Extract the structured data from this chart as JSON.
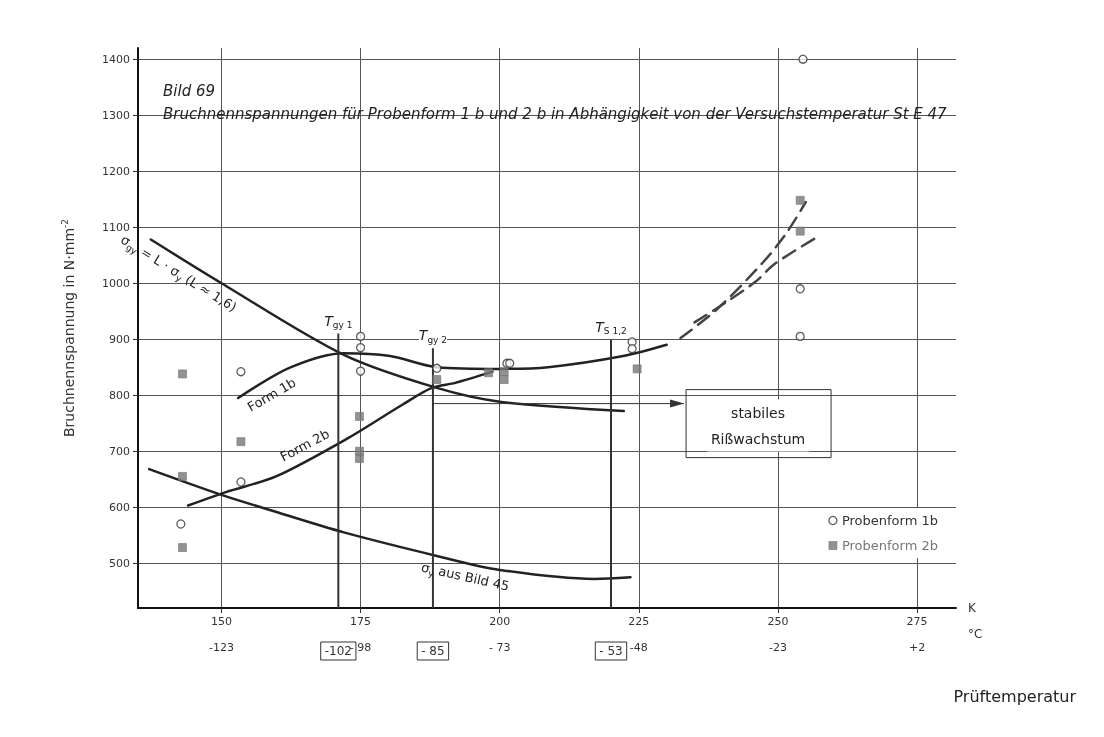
{
  "chart_data": {
    "type": "line",
    "title": "Bild 69",
    "subtitle": "Bruchnennspannungen für Probenform 1 b und 2 b in Abhängigkeit von der Versuchstemperatur St E 47",
    "ylabel": "Bruchnennspannung in N·mm$^{-2}$",
    "xlabel": "K",
    "x2label": "°C",
    "annotations": [
      "stabiles Rißwachstum",
      "Prüftemperatur"
    ],
    "xlim": [
      135,
      282
    ],
    "xticks": [
      150,
      175,
      200,
      225,
      250,
      275
    ],
    "x2lim": [
      -138,
      9
    ],
    "x2ticks": [
      -123,
      {
        "value": -102,
        "label": "-102"
      },
      {
        "value": -98,
        "label": "- 98"
      },
      {
        "value": -85,
        "label": "- 85"
      },
      {
        "value": -73,
        "label": "- 73"
      },
      {
        "value": -53,
        "label": "- 53"
      },
      {
        "value": -48,
        "label": "-48"
      },
      {
        "value": -23,
        "label": "-23"
      },
      {
        "value": 2,
        "label": "+2"
      }
    ],
    "ylim": [
      420,
      1420
    ],
    "yticks": [
      500,
      600,
      700,
      800,
      900,
      1000,
      1100,
      1200,
      1300,
      1400
    ],
    "grid": true,
    "legend": "bottom right",
    "ref_lines": [
      {
        "axis": "x",
        "value": 171,
        "label": "T$_{gy 1}$",
        "color": "#333333"
      },
      {
        "axis": "x",
        "value": 188,
        "label": "T$_{gy 2}$",
        "color": "#333333"
      },
      {
        "axis": "x",
        "value": 220,
        "label": "T$_{S 1,2}$",
        "color": "#333333"
      }
    ],
    "series": [
      {
        "name": "σ$_{gy}$ = L · σ$_{y}$ (L ≈ 1,6)",
        "marker": "none",
        "line_style": "solid",
        "color": "#222222",
        "x": [
          137.3,
          150,
          172,
          188.7,
          200.3,
          222.3
        ],
        "values": [
          1078,
          1000,
          872,
          813,
          788,
          772
        ]
      },
      {
        "name": "Form 1b",
        "marker": "none",
        "line_style": "solid",
        "color": "#222222",
        "x": [
          153,
          162.5,
          172,
          180.3,
          188.7,
          200.3,
          208.7,
          222.2,
          230
        ],
        "values": [
          795,
          850,
          875,
          870,
          850,
          847,
          850,
          870,
          890
        ]
      },
      {
        "name": "Form 2b",
        "marker": "none",
        "line_style": "solid",
        "color": "#222222",
        "x": [
          144,
          150.8,
          159.8,
          172.5,
          182.5,
          187.8,
          192,
          198.7
        ],
        "values": [
          603,
          627,
          655,
          722,
          783,
          813,
          822,
          842
        ]
      },
      {
        "marker": "none",
        "line_style": "dashed",
        "color": "#444444",
        "x": [
          232.5,
          239,
          247.3,
          251.7,
          255
        ],
        "values": [
          902,
          953,
          1037,
          1092,
          1145
        ]
      },
      {
        "marker": "none",
        "line_style": "dashed",
        "color": "#444444",
        "x": [
          235,
          241,
          246,
          249.5,
          257
        ],
        "values": [
          930,
          968,
          1003,
          1035,
          1082
        ]
      },
      {
        "name": "σ$_{y}$ aus Bild 45",
        "marker": "none",
        "line_style": "solid",
        "color": "#222222",
        "x": [
          137,
          150,
          158.7,
          172,
          188.7,
          200,
          217,
          223.5
        ],
        "values": [
          668,
          622,
          595,
          555,
          513,
          488,
          472,
          475
        ]
      },
      {
        "name": "Probenform 1b",
        "type": "scatter",
        "marker": "circle",
        "color": "#333333",
        "x": [
          142.7,
          153.5,
          153.5,
          175,
          175,
          175,
          188.7,
          201.3,
          201.8,
          223.8,
          223.8,
          254,
          254,
          254.5
        ],
        "values": [
          570,
          645,
          842,
          905,
          885,
          843,
          848,
          857,
          857,
          895,
          883,
          990,
          905,
          1400
        ]
      },
      {
        "name": "Probenform 2b",
        "type": "scatter",
        "marker": "square",
        "color": "#777777",
        "x": [
          143,
          143,
          143,
          153.5,
          174.8,
          174.8,
          174.8,
          188.7,
          198,
          200.8,
          200.8,
          224.7,
          254,
          254
        ],
        "values": [
          838,
          655,
          528,
          717,
          762,
          700,
          687,
          828,
          840,
          842,
          828,
          847,
          1148,
          1093
        ]
      }
    ]
  }
}
